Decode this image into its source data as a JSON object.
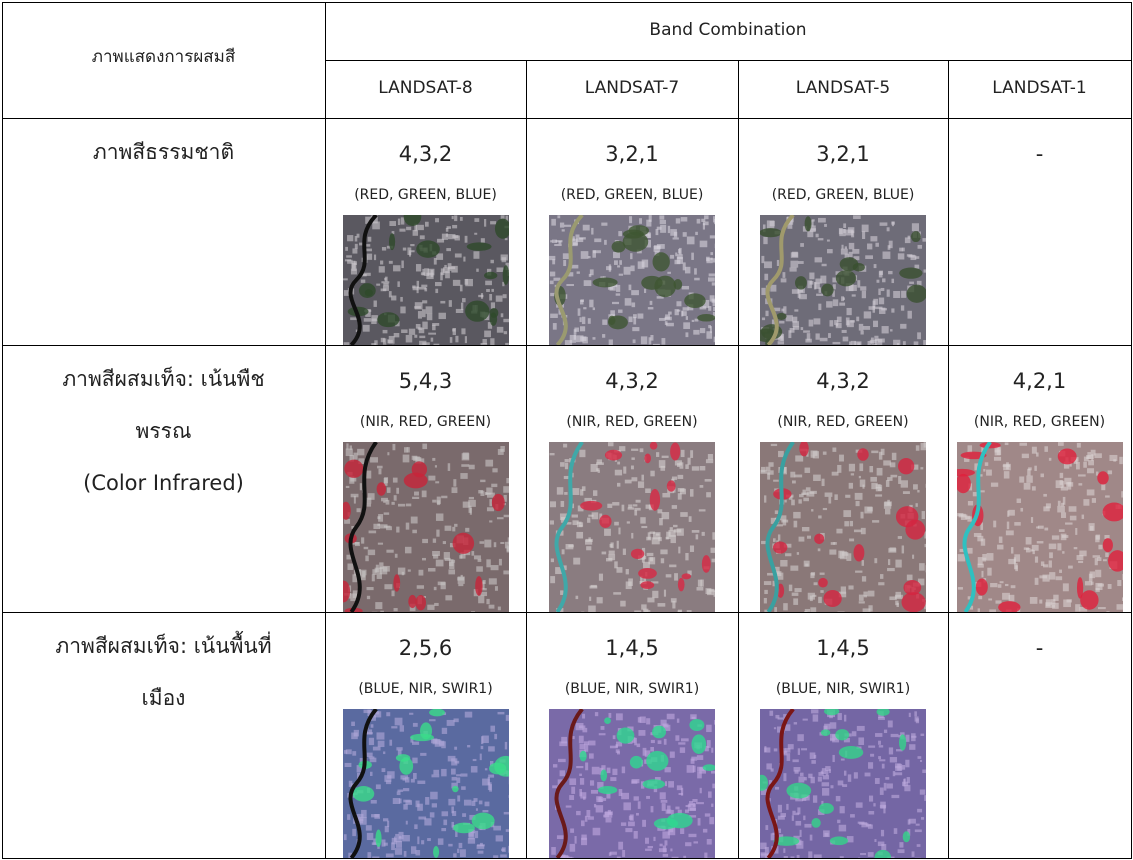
{
  "header": {
    "title": "ภาพแสดงการผสมสี",
    "group": "Band Combination",
    "columns": [
      "LANDSAT-8",
      "LANDSAT-7",
      "LANDSAT-5",
      "LANDSAT-1"
    ]
  },
  "rows": [
    {
      "label": [
        "ภาพสีธรรมชาติ"
      ],
      "cells": [
        {
          "bands": "4,3,2",
          "names": "(RED, GREEN, BLUE)"
        },
        {
          "bands": "3,2,1",
          "names": "(RED, GREEN, BLUE)"
        },
        {
          "bands": "3,2,1",
          "names": "(RED, GREEN, BLUE)"
        },
        {
          "bands": "-"
        }
      ]
    },
    {
      "label": [
        "ภาพสีผสมเท็จ: เน้นพืช",
        "พรรณ",
        "(Color Infrared)"
      ],
      "cells": [
        {
          "bands": "5,4,3",
          "names": "(NIR, RED, GREEN)"
        },
        {
          "bands": "4,3,2",
          "names": "(NIR, RED, GREEN)"
        },
        {
          "bands": "4,3,2",
          "names": "(NIR, RED, GREEN)"
        },
        {
          "bands": "4,2,1",
          "names": "(NIR, RED, GREEN)"
        }
      ]
    },
    {
      "label": [
        "ภาพสีผสมเท็จ: เน้นพื้นที่",
        "เมือง"
      ],
      "cells": [
        {
          "bands": "2,5,6",
          "names": "(BLUE, NIR, SWIR1)"
        },
        {
          "bands": "1,4,5",
          "names": "(BLUE, NIR, SWIR1)"
        },
        {
          "bands": "1,4,5",
          "names": "(BLUE, NIR, SWIR1)"
        },
        {
          "bands": "-"
        }
      ]
    }
  ]
}
